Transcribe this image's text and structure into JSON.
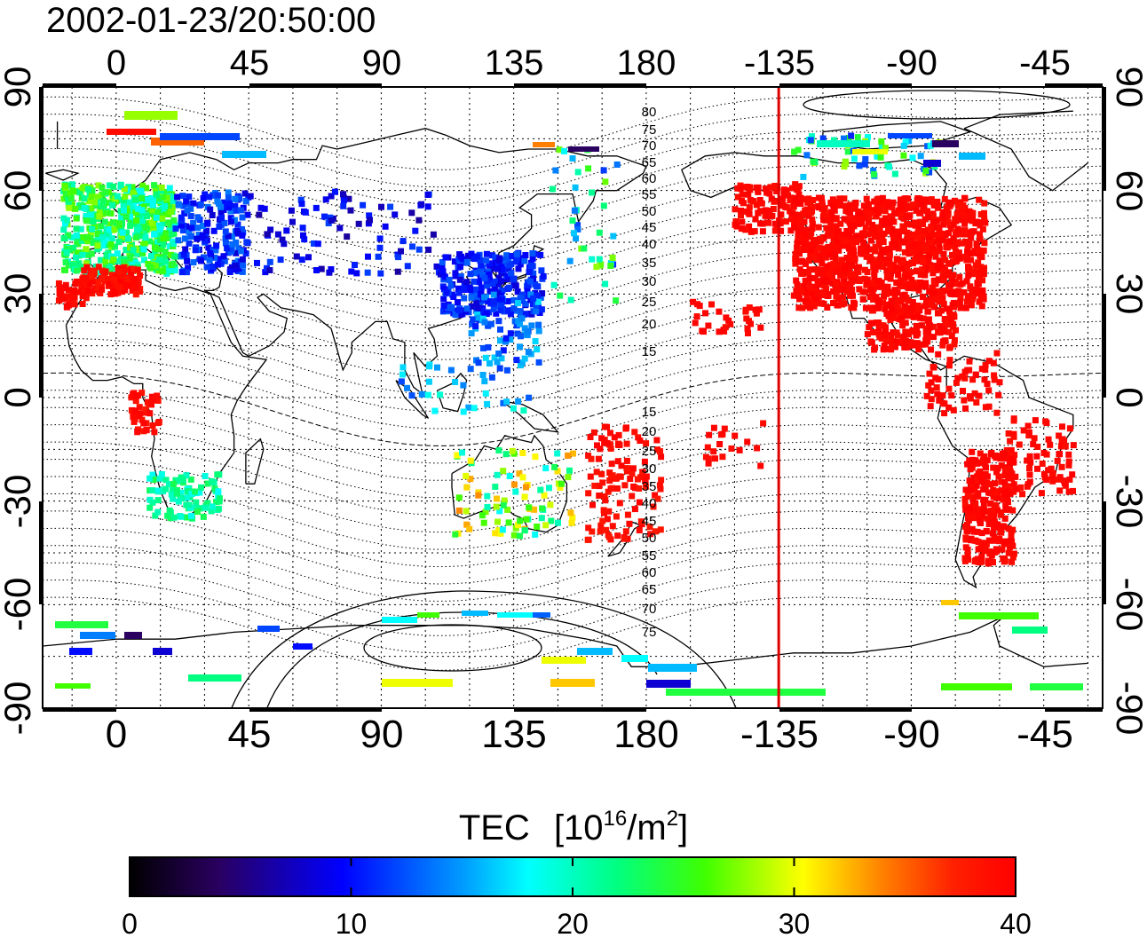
{
  "timestamp": "2002-01-23/20:50:00",
  "map": {
    "x_ticks": [
      "0",
      "45",
      "90",
      "135",
      "180",
      "-135",
      "-90",
      "-45"
    ],
    "y_ticks": [
      "90",
      "60",
      "30",
      "0",
      "-30",
      "-60",
      "-90"
    ],
    "terminator_longitude": -135,
    "contour_labels_north": [
      "80",
      "75",
      "70",
      "65",
      "60",
      "55",
      "50",
      "45",
      "40",
      "35",
      "30",
      "25",
      "20",
      "15"
    ],
    "contour_labels_south": [
      "15",
      "20",
      "25",
      "30",
      "35",
      "40",
      "45",
      "50",
      "55",
      "60",
      "65",
      "70",
      "75"
    ],
    "grid": true,
    "colors": {
      "terminator": "#e00000",
      "frame": "#000000"
    }
  },
  "colorbar": {
    "title": "TEC",
    "unit_prefix": "[10",
    "unit_exp": "16",
    "unit_mid": "/m",
    "unit_exp2": "2",
    "unit_suffix": "]",
    "ticks": [
      "0",
      "10",
      "20",
      "30",
      "40"
    ],
    "min": 0,
    "max": 40
  }
}
